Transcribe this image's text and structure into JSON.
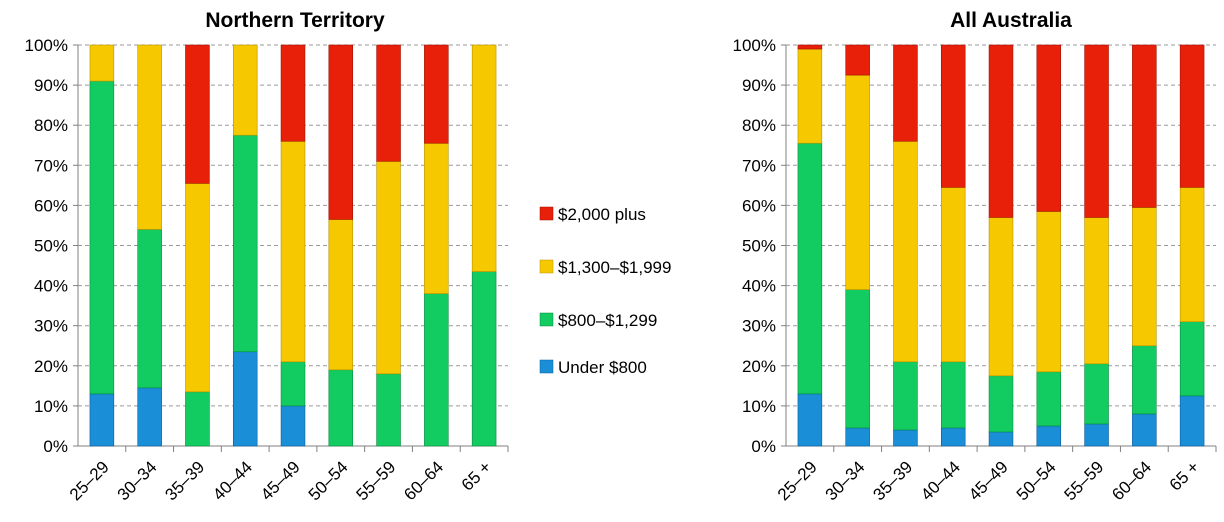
{
  "chart_data": [
    {
      "type": "bar",
      "stacked": true,
      "title": "Northern Territory",
      "categories": [
        "25–29",
        "30–34",
        "35–39",
        "40–44",
        "45–49",
        "50–54",
        "55–59",
        "60–64",
        "65 +"
      ],
      "ylim": [
        0,
        100
      ],
      "yticks": [
        "0%",
        "10%",
        "20%",
        "30%",
        "40%",
        "50%",
        "60%",
        "70%",
        "80%",
        "90%",
        "100%"
      ],
      "grid": true,
      "series": [
        {
          "name": "Under $800",
          "values": [
            13,
            14.5,
            0,
            23.5,
            10,
            0,
            0,
            0,
            0
          ]
        },
        {
          "name": "$800–$1,299",
          "values": [
            78,
            39.5,
            13.5,
            54,
            11,
            19,
            18,
            38,
            43.5
          ]
        },
        {
          "name": "$1,300–$1,999",
          "values": [
            9,
            46,
            52,
            22.5,
            55,
            37.5,
            53,
            37.5,
            56.5
          ]
        },
        {
          "name": "$2,000 plus",
          "values": [
            0,
            0,
            34.5,
            0,
            24,
            43.5,
            29,
            24.5,
            0
          ]
        }
      ]
    },
    {
      "type": "bar",
      "stacked": true,
      "title": "All Australia",
      "categories": [
        "25–29",
        "30–34",
        "35–39",
        "40–44",
        "45–49",
        "50–54",
        "55–59",
        "60–64",
        "65 +"
      ],
      "ylim": [
        0,
        100
      ],
      "yticks": [
        "0%",
        "10%",
        "20%",
        "30%",
        "40%",
        "50%",
        "60%",
        "70%",
        "80%",
        "90%",
        "100%"
      ],
      "grid": true,
      "series": [
        {
          "name": "Under $800",
          "values": [
            13,
            4.5,
            4,
            4.5,
            3.5,
            5,
            5.5,
            8,
            12.5
          ]
        },
        {
          "name": "$800–$1,299",
          "values": [
            62.5,
            34.5,
            17,
            16.5,
            14,
            13.5,
            15,
            17,
            18.5
          ]
        },
        {
          "name": "$1,300–$1,999",
          "values": [
            23.5,
            53.5,
            55,
            43.5,
            39.5,
            40,
            36.5,
            34.5,
            33.5
          ]
        },
        {
          "name": "$2,000 plus",
          "values": [
            1,
            7.5,
            24,
            35.5,
            43,
            41.5,
            43,
            40.5,
            35.5
          ]
        }
      ]
    }
  ],
  "legend": {
    "placement": "center",
    "items": [
      {
        "label": "$2,000 plus",
        "color": "#e8200a"
      },
      {
        "label": "$1,300–$1,999",
        "color": "#f5c800"
      },
      {
        "label": "$800–$1,299",
        "color": "#12cc62"
      },
      {
        "label": "Under $800",
        "color": "#1a8fd8"
      }
    ]
  },
  "colors": {
    "Under $800": "#1a8fd8",
    "$800–$1,299": "#12cc62",
    "$1,300–$1,999": "#f5c800",
    "$2,000 plus": "#e8200a"
  }
}
